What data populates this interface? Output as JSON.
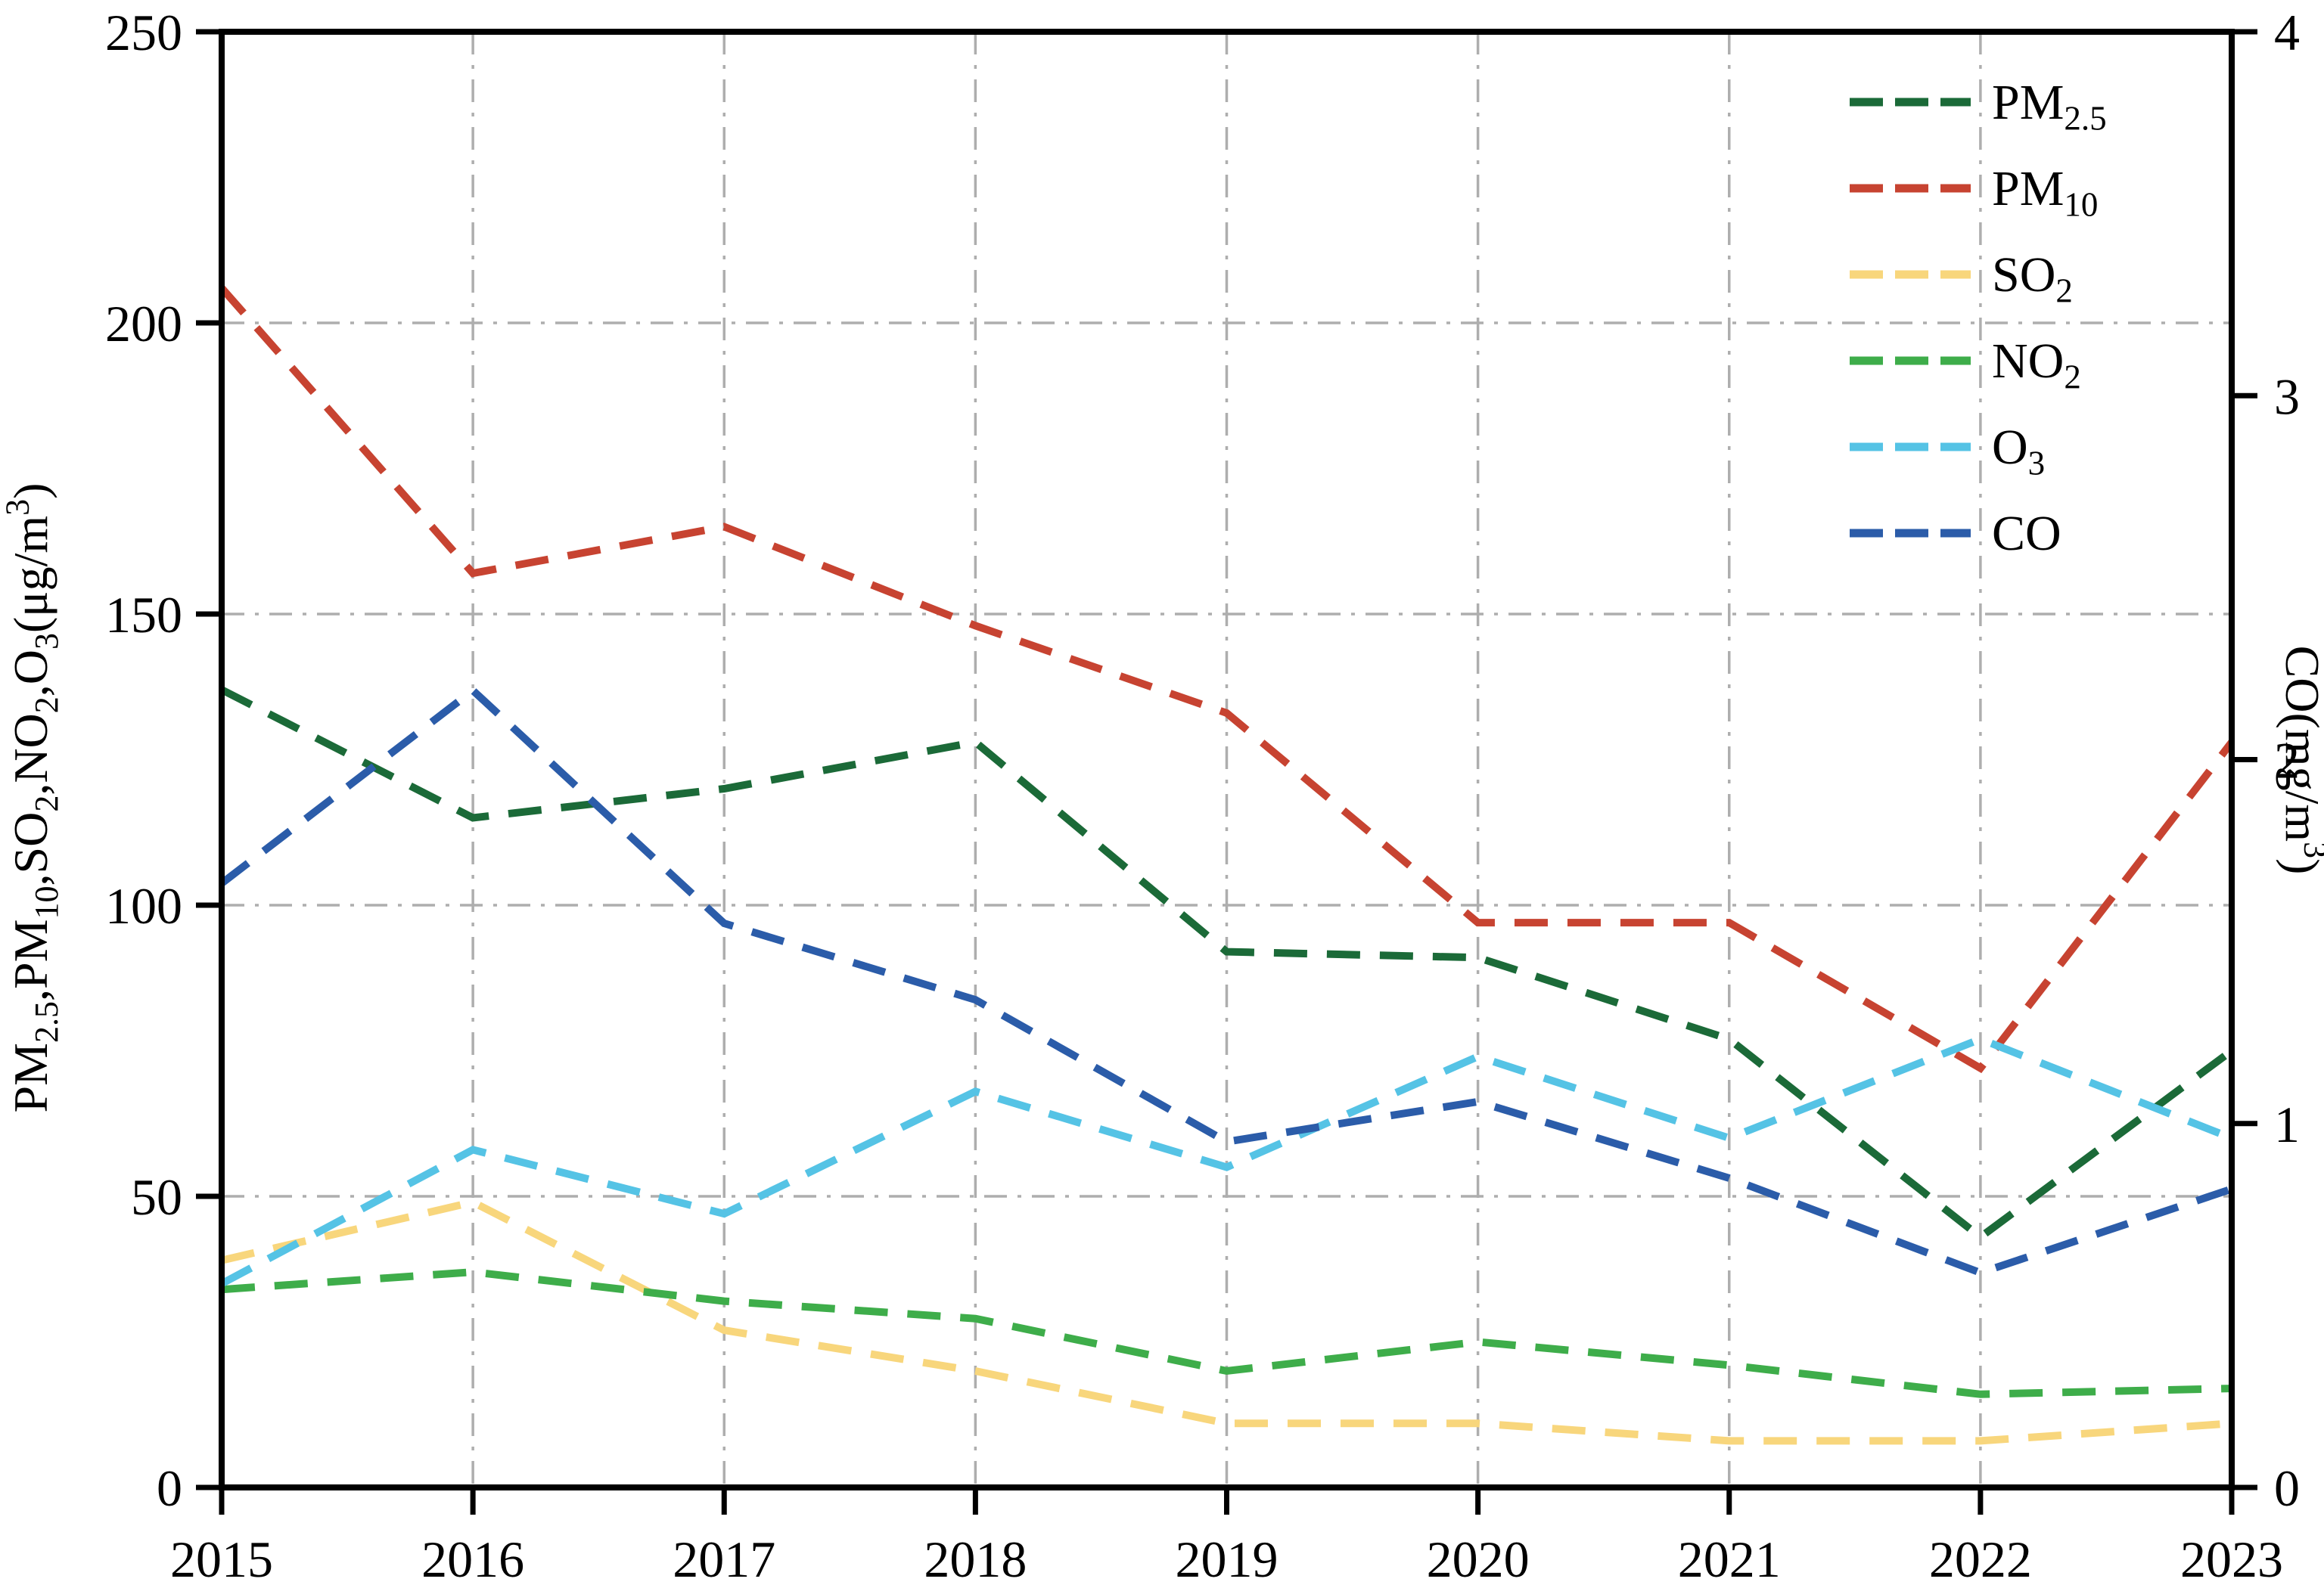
{
  "chart_data": {
    "type": "line",
    "title": "",
    "x": [
      2015,
      2016,
      2017,
      2018,
      2019,
      2020,
      2021,
      2022,
      2023
    ],
    "x_tick_labels": [
      "2015",
      "2016",
      "2017",
      "2018",
      "2019",
      "2020",
      "2021",
      "2022",
      "2023"
    ],
    "left_axis": {
      "label_parts": [
        {
          "text": "PM"
        },
        {
          "sub": "2.5"
        },
        {
          "text": ",PM"
        },
        {
          "sub": "10"
        },
        {
          "text": ",SO"
        },
        {
          "sub": "2"
        },
        {
          "text": ",NO"
        },
        {
          "sub": "2"
        },
        {
          "text": ",O"
        },
        {
          "sub": "3"
        },
        {
          "text": "(μg/m"
        },
        {
          "sup": "3"
        },
        {
          "text": ")"
        }
      ],
      "ticks": [
        0,
        50,
        100,
        150,
        200,
        250
      ],
      "min": 0,
      "max": 250
    },
    "right_axis": {
      "label_parts": [
        {
          "text": "CO(mg/m"
        },
        {
          "sup": "3"
        },
        {
          "text": ")"
        }
      ],
      "ticks": [
        0,
        1,
        2,
        3,
        4
      ],
      "min": 0,
      "max": 4
    },
    "grid": {
      "on": true,
      "style": "dash-dot",
      "color": "#aeaeae"
    },
    "legend_position": "upper-right-inside",
    "series": [
      {
        "name_base": "PM",
        "name_sub": "2.5",
        "axis": "left",
        "color": "#1b6a38",
        "values": [
          137,
          115,
          120,
          128,
          92,
          91,
          77,
          43,
          75
        ]
      },
      {
        "name_base": "PM",
        "name_sub": "10",
        "axis": "left",
        "color": "#c74331",
        "values": [
          206,
          157,
          165,
          148,
          133,
          97,
          97,
          72,
          128
        ]
      },
      {
        "name_base": "SO",
        "name_sub": "2",
        "axis": "left",
        "color": "#f8d67c",
        "values": [
          39,
          49,
          27,
          20,
          11,
          11,
          8,
          8,
          11
        ]
      },
      {
        "name_base": "NO",
        "name_sub": "2",
        "axis": "left",
        "color": "#3ead4a",
        "values": [
          34,
          37,
          32,
          29,
          20,
          25,
          21,
          16,
          17
        ]
      },
      {
        "name_base": "O",
        "name_sub": "3",
        "axis": "left",
        "color": "#55c3e5",
        "values": [
          35,
          58,
          47,
          68,
          55,
          74,
          60,
          77,
          60
        ]
      },
      {
        "name_base": "CO",
        "name_sub": "",
        "axis": "right",
        "color": "#2b5ca9",
        "values": [
          1.66,
          2.19,
          1.55,
          1.34,
          0.95,
          1.06,
          0.85,
          0.59,
          0.82
        ]
      }
    ]
  }
}
